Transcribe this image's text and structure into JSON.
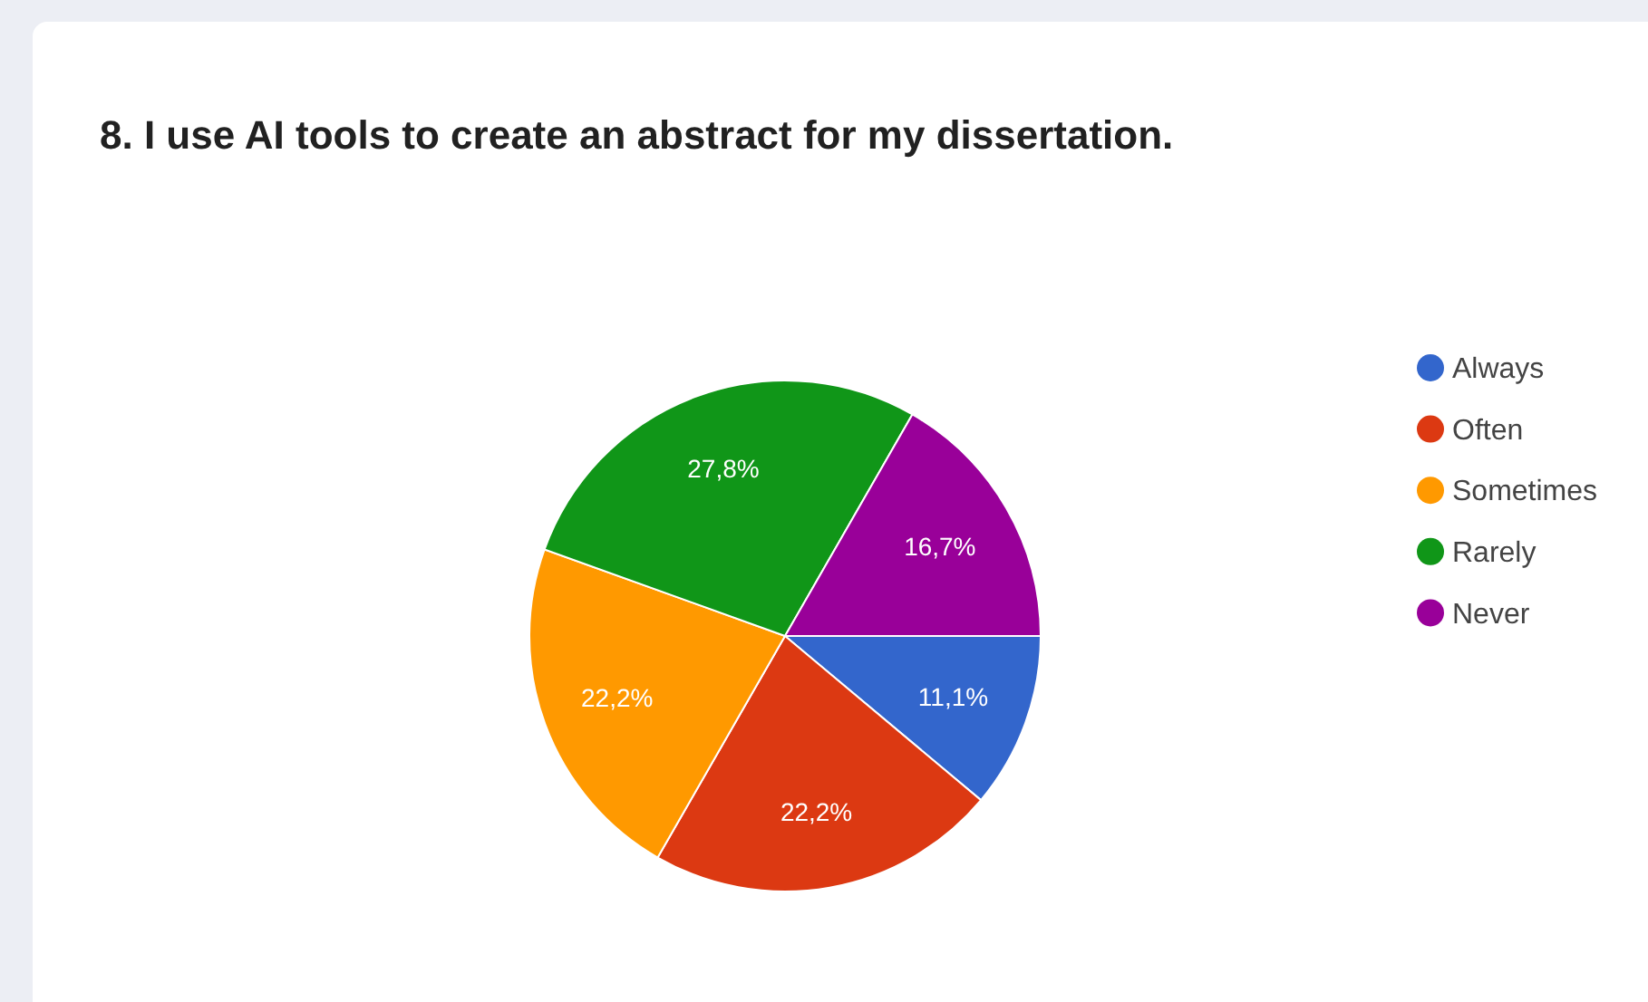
{
  "chart_data": {
    "type": "pie",
    "title": "8. I use AI tools to create an abstract for my dissertation.",
    "categories": [
      "Always",
      "Often",
      "Sometimes",
      "Rarely",
      "Never"
    ],
    "values": [
      11.1,
      22.2,
      22.2,
      27.8,
      16.7
    ],
    "colors": [
      "#3366cc",
      "#dc3912",
      "#ff9900",
      "#109618",
      "#990099"
    ],
    "value_labels": [
      "11,1%",
      "22,2%",
      "22,2%",
      "27,8%",
      "16,7%"
    ],
    "legend": "right"
  }
}
